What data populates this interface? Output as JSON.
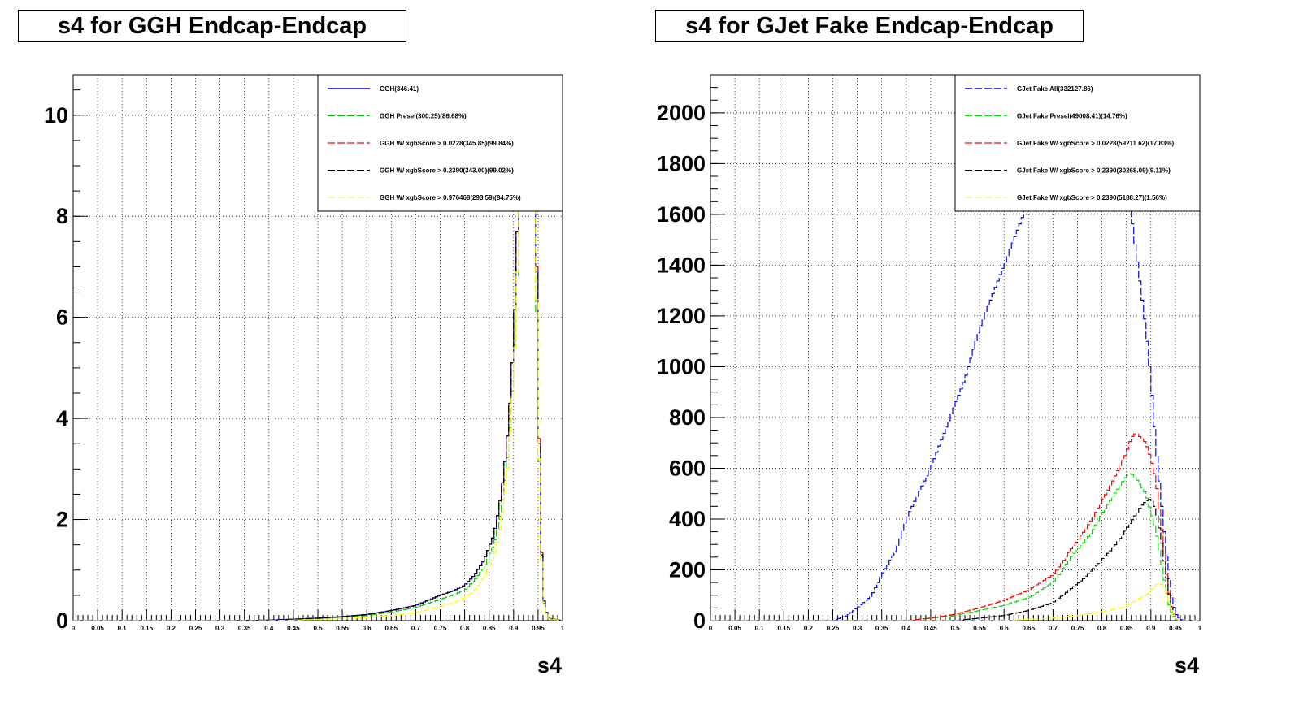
{
  "chart_data": [
    {
      "type": "line",
      "title": "s4 for GGH Endcap-Endcap",
      "xlabel": "s4",
      "ylabel": "",
      "xlim": [
        0,
        1
      ],
      "ylim": [
        0,
        10.8
      ],
      "grid": true,
      "legend_position": "top-right",
      "x_ticks": [
        "0",
        "0.05",
        "0.1",
        "0.15",
        "0.2",
        "0.25",
        "0.3",
        "0.35",
        "0.4",
        "0.45",
        "0.5",
        "0.55",
        "0.6",
        "0.65",
        "0.7",
        "0.75",
        "0.8",
        "0.85",
        "0.9",
        "0.95",
        "1"
      ],
      "y_ticks": [
        "0",
        "2",
        "4",
        "6",
        "8",
        "10"
      ],
      "series": [
        {
          "name": "GGH(346.41)",
          "color": "#0000ff",
          "dash": "solid",
          "x": [
            0.3,
            0.4,
            0.45,
            0.5,
            0.55,
            0.6,
            0.65,
            0.7,
            0.75,
            0.78,
            0.8,
            0.82,
            0.84,
            0.86,
            0.87,
            0.88,
            0.89,
            0.9,
            0.905,
            0.91,
            0.915,
            0.92,
            0.93,
            0.935,
            0.94,
            0.945,
            0.95,
            0.955,
            0.96,
            0.97,
            1.0
          ],
          "y": [
            0,
            0.01,
            0.03,
            0.05,
            0.08,
            0.12,
            0.2,
            0.3,
            0.5,
            0.6,
            0.7,
            0.9,
            1.2,
            1.7,
            2.2,
            2.9,
            3.9,
            5.5,
            6.8,
            8.6,
            10.5,
            10.8,
            10.8,
            10.5,
            10.8,
            9.0,
            5.0,
            2.2,
            0.5,
            0.05,
            0
          ]
        },
        {
          "name": "GGH Presel(300.25)(86.68%)",
          "color": "#00cc00",
          "dash": "dash",
          "x": [
            0.3,
            0.4,
            0.45,
            0.5,
            0.55,
            0.6,
            0.65,
            0.7,
            0.75,
            0.78,
            0.8,
            0.82,
            0.84,
            0.86,
            0.87,
            0.88,
            0.89,
            0.9,
            0.905,
            0.91,
            0.915,
            0.92,
            0.93,
            0.935,
            0.94,
            0.945,
            0.95,
            0.955,
            0.96,
            0.97,
            1.0
          ],
          "y": [
            0,
            0.01,
            0.02,
            0.04,
            0.07,
            0.1,
            0.17,
            0.26,
            0.42,
            0.52,
            0.6,
            0.8,
            1.05,
            1.5,
            1.9,
            2.55,
            3.45,
            4.9,
            6.0,
            7.6,
            9.2,
            10.2,
            10.8,
            10.8,
            9.2,
            7.8,
            4.4,
            1.9,
            0.45,
            0.04,
            0
          ]
        },
        {
          "name": "GGH W/ xgbScore > 0.0228(345.85)(99.84%)",
          "color": "#ff0000",
          "dash": "dash",
          "x": [
            0.3,
            0.4,
            0.45,
            0.5,
            0.55,
            0.6,
            0.65,
            0.7,
            0.75,
            0.78,
            0.8,
            0.82,
            0.84,
            0.86,
            0.87,
            0.88,
            0.89,
            0.9,
            0.905,
            0.91,
            0.915,
            0.92,
            0.93,
            0.935,
            0.94,
            0.945,
            0.95,
            0.955,
            0.96,
            0.97,
            1.0
          ],
          "y": [
            0,
            0.01,
            0.03,
            0.05,
            0.08,
            0.12,
            0.2,
            0.3,
            0.5,
            0.6,
            0.7,
            0.9,
            1.2,
            1.7,
            2.2,
            2.9,
            3.9,
            5.5,
            6.8,
            8.6,
            10.5,
            10.8,
            10.8,
            10.5,
            10.8,
            9.0,
            5.0,
            2.2,
            0.5,
            0.05,
            0
          ]
        },
        {
          "name": "GGH W/ xgbScore > 0.2390(343.00)(99.02%)",
          "color": "#000000",
          "dash": "dash",
          "x": [
            0.3,
            0.4,
            0.45,
            0.5,
            0.55,
            0.6,
            0.65,
            0.7,
            0.75,
            0.78,
            0.8,
            0.82,
            0.84,
            0.86,
            0.87,
            0.88,
            0.89,
            0.9,
            0.905,
            0.91,
            0.915,
            0.92,
            0.93,
            0.935,
            0.94,
            0.945,
            0.95,
            0.955,
            0.96,
            0.97,
            1.0
          ],
          "y": [
            0,
            0.01,
            0.03,
            0.05,
            0.08,
            0.12,
            0.2,
            0.3,
            0.5,
            0.6,
            0.7,
            0.9,
            1.2,
            1.7,
            2.2,
            2.9,
            3.9,
            5.5,
            6.8,
            8.6,
            10.4,
            10.8,
            10.8,
            10.4,
            10.6,
            8.9,
            4.9,
            2.1,
            0.5,
            0.05,
            0
          ]
        },
        {
          "name": "GGH W/ xgbScore > 0.976468(293.59)(84.75%)",
          "color": "#ffff00",
          "dash": "dash",
          "x": [
            0.3,
            0.4,
            0.45,
            0.5,
            0.55,
            0.6,
            0.65,
            0.7,
            0.75,
            0.78,
            0.8,
            0.82,
            0.84,
            0.86,
            0.87,
            0.88,
            0.89,
            0.9,
            0.905,
            0.91,
            0.915,
            0.92,
            0.93,
            0.935,
            0.94,
            0.945,
            0.95,
            0.955,
            0.96,
            0.97,
            1.0
          ],
          "y": [
            0,
            0,
            0.01,
            0.02,
            0.04,
            0.06,
            0.1,
            0.16,
            0.28,
            0.36,
            0.45,
            0.6,
            0.85,
            1.25,
            1.65,
            2.3,
            3.25,
            4.8,
            6.0,
            7.8,
            9.6,
            10.8,
            10.8,
            10.2,
            9.8,
            8.2,
            4.5,
            1.9,
            0.42,
            0.04,
            0
          ]
        }
      ]
    },
    {
      "type": "line",
      "title": "s4 for GJet Fake Endcap-Endcap",
      "xlabel": "s4",
      "ylabel": "",
      "xlim": [
        0,
        1
      ],
      "ylim": [
        0,
        2150
      ],
      "grid": true,
      "legend_position": "top-right",
      "x_ticks": [
        "0",
        "0.05",
        "0.1",
        "0.15",
        "0.2",
        "0.25",
        "0.3",
        "0.35",
        "0.4",
        "0.45",
        "0.5",
        "0.55",
        "0.6",
        "0.65",
        "0.7",
        "0.75",
        "0.8",
        "0.85",
        "0.9",
        "0.95",
        "1"
      ],
      "y_ticks": [
        "0",
        "200",
        "400",
        "600",
        "800",
        "1000",
        "1200",
        "1400",
        "1600",
        "1800",
        "2000"
      ],
      "series": [
        {
          "name": "GJet Fake All(332127.86)",
          "color": "#0000ff",
          "dash": "dash",
          "x": [
            0.25,
            0.28,
            0.3,
            0.33,
            0.35,
            0.38,
            0.4,
            0.42,
            0.45,
            0.48,
            0.5,
            0.52,
            0.55,
            0.58,
            0.6,
            0.62,
            0.64,
            0.66,
            0.68,
            0.7,
            0.72,
            0.74,
            0.76,
            0.78,
            0.8,
            0.82,
            0.84,
            0.85,
            0.86,
            0.87,
            0.88,
            0.89,
            0.9,
            0.91,
            0.92,
            0.93,
            0.94,
            0.95,
            0.96,
            0.97
          ],
          "y": [
            0,
            20,
            50,
            100,
            180,
            280,
            400,
            480,
            600,
            750,
            850,
            950,
            1150,
            1300,
            1400,
            1500,
            1600,
            1750,
            1900,
            2000,
            2100,
            2150,
            2150,
            2150,
            2150,
            2000,
            1850,
            1700,
            1600,
            1450,
            1300,
            1150,
            950,
            700,
            500,
            300,
            120,
            30,
            5,
            0
          ]
        },
        {
          "name": "GJet Fake Presel(49008.41)(14.76%)",
          "color": "#00dd00",
          "dash": "dash",
          "x": [
            0.4,
            0.45,
            0.5,
            0.55,
            0.6,
            0.65,
            0.7,
            0.72,
            0.74,
            0.76,
            0.78,
            0.8,
            0.82,
            0.84,
            0.85,
            0.86,
            0.87,
            0.88,
            0.89,
            0.9,
            0.91,
            0.92,
            0.93,
            0.94,
            0.95,
            0.96
          ],
          "y": [
            0,
            10,
            20,
            40,
            60,
            90,
            150,
            200,
            260,
            300,
            350,
            420,
            480,
            540,
            570,
            580,
            560,
            530,
            500,
            430,
            360,
            250,
            130,
            40,
            8,
            0
          ]
        },
        {
          "name": "GJet Fake W/ xgbScore > 0.0228(59211.62)(17.83%)",
          "color": "#ff0000",
          "dash": "dash",
          "x": [
            0.4,
            0.45,
            0.5,
            0.55,
            0.6,
            0.65,
            0.7,
            0.72,
            0.74,
            0.76,
            0.78,
            0.8,
            0.82,
            0.84,
            0.85,
            0.86,
            0.87,
            0.88,
            0.89,
            0.9,
            0.91,
            0.92,
            0.93,
            0.94,
            0.95,
            0.96
          ],
          "y": [
            0,
            10,
            25,
            50,
            80,
            120,
            180,
            230,
            290,
            340,
            400,
            470,
            540,
            620,
            660,
            720,
            740,
            720,
            700,
            640,
            560,
            400,
            220,
            70,
            10,
            0
          ]
        },
        {
          "name": "GJet Fake W/ xgbScore > 0.2390(30268.09)(9.11%)",
          "color": "#000000",
          "dash": "dash",
          "x": [
            0.5,
            0.55,
            0.6,
            0.65,
            0.7,
            0.72,
            0.74,
            0.76,
            0.78,
            0.8,
            0.82,
            0.84,
            0.85,
            0.86,
            0.87,
            0.88,
            0.89,
            0.9,
            0.91,
            0.92,
            0.93,
            0.94,
            0.95,
            0.96
          ],
          "y": [
            0,
            10,
            20,
            40,
            70,
            100,
            130,
            160,
            200,
            240,
            280,
            330,
            360,
            390,
            420,
            450,
            470,
            480,
            440,
            340,
            200,
            70,
            10,
            0
          ]
        },
        {
          "name": "GJet Fake W/ xgbScore > 0.2390(5188.27)(1.56%)",
          "color": "#ffff00",
          "dash": "dash",
          "x": [
            0.6,
            0.65,
            0.7,
            0.75,
            0.8,
            0.84,
            0.86,
            0.88,
            0.89,
            0.9,
            0.91,
            0.92,
            0.93,
            0.94,
            0.95,
            0.96
          ],
          "y": [
            0,
            5,
            10,
            20,
            35,
            50,
            70,
            90,
            100,
            120,
            140,
            150,
            120,
            60,
            10,
            0
          ]
        }
      ]
    }
  ]
}
